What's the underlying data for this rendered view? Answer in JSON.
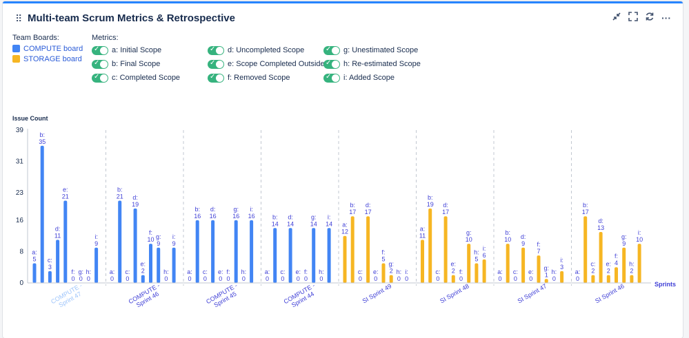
{
  "header": {
    "title": "Multi-team Scrum Metrics & Retrospective",
    "icons": [
      "collapse-icon",
      "fullscreen-icon",
      "refresh-icon",
      "more-icon"
    ]
  },
  "legend": {
    "boards_heading": "Team Boards:",
    "boards": [
      {
        "label": "COMPUTE board",
        "color": "#4285f4"
      },
      {
        "label": "STORAGE board",
        "color": "#f6b623"
      }
    ],
    "metrics_heading": "Metrics:",
    "metrics": [
      {
        "label": "a: Initial Scope"
      },
      {
        "label": "b: Final Scope"
      },
      {
        "label": "c: Completed Scope"
      },
      {
        "label": "d: Uncompleted Scope"
      },
      {
        "label": "e: Scope Completed Outside"
      },
      {
        "label": "f: Removed Scope"
      },
      {
        "label": "g: Unestimated Scope"
      },
      {
        "label": "h: Re-estimated Scope"
      },
      {
        "label": "i: Added Scope"
      }
    ]
  },
  "chart_data": {
    "type": "bar",
    "ylabel": "Issue Count",
    "xlabel": "Sprints",
    "yticks": [
      0,
      8,
      16,
      23,
      31,
      39
    ],
    "ylim": [
      0,
      39
    ],
    "grid": false,
    "metric_keys": [
      "a",
      "b",
      "c",
      "d",
      "e",
      "f",
      "g",
      "h",
      "i"
    ],
    "groups": [
      {
        "label": "COMPUTE - Sprint 47",
        "board": "COMPUTE",
        "values": [
          5,
          35,
          3,
          11,
          21,
          0,
          0,
          0,
          9
        ],
        "faded": true
      },
      {
        "label": "COMPUTE - Sprint 46",
        "board": "COMPUTE",
        "values": [
          0,
          21,
          0,
          19,
          2,
          10,
          9,
          0,
          9
        ]
      },
      {
        "label": "COMPUTE - Sprint 45",
        "board": "COMPUTE",
        "values": [
          0,
          16,
          0,
          16,
          0,
          0,
          16,
          0,
          16
        ]
      },
      {
        "label": "COMPUTE - Sprint 44",
        "board": "COMPUTE",
        "values": [
          0,
          14,
          0,
          14,
          0,
          0,
          14,
          0,
          14
        ]
      },
      {
        "label": "SI Sprint 49",
        "board": "STORAGE",
        "values": [
          12,
          17,
          0,
          17,
          0,
          5,
          2,
          0,
          0
        ]
      },
      {
        "label": "SI Sprint 48",
        "board": "STORAGE",
        "values": [
          11,
          19,
          0,
          17,
          2,
          0,
          10,
          5,
          6
        ]
      },
      {
        "label": "SI Sprint 47",
        "board": "STORAGE",
        "values": [
          0,
          10,
          0,
          9,
          0,
          7,
          1,
          0,
          3
        ]
      },
      {
        "label": "SI Sprint 46",
        "board": "STORAGE",
        "values": [
          0,
          17,
          2,
          13,
          2,
          4,
          9,
          2,
          10
        ]
      }
    ]
  }
}
